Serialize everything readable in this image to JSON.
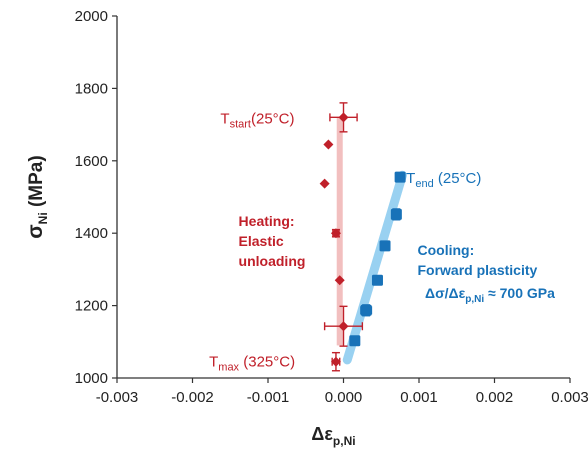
{
  "chart_data": {
    "type": "scatter",
    "xlabel": "Δε_p,Ni",
    "ylabel": "σ_Ni (MPa)",
    "xlim": [
      -0.003,
      0.003
    ],
    "ylim": [
      1000,
      2000
    ],
    "x_ticks": [
      "-0.003",
      "-0.002",
      "-0.001",
      "0.000",
      "0.001",
      "0.002",
      "0.003"
    ],
    "y_ticks": [
      "1000",
      "1200",
      "1400",
      "1600",
      "1800",
      "2000"
    ],
    "grid": false,
    "colors": {
      "heating": "#c0202a",
      "cooling": "#1872b8",
      "fit": "#8ecdf0",
      "band": "#f0b4b4"
    },
    "series": [
      {
        "marker": "diamond",
        "points": [
          {
            "x": 0.0,
            "y": 1720,
            "xerr": 0.00018,
            "yerr": 40
          },
          {
            "x": -0.0002,
            "y": 1645
          },
          {
            "x": -0.00025,
            "y": 1537
          },
          {
            "x": -0.0001,
            "y": 1400,
            "xerr": 4e-05,
            "yerr": 10
          },
          {
            "x": -5e-05,
            "y": 1270
          },
          {
            "x": 0.0,
            "y": 1143,
            "xerr": 0.00025,
            "yerr": 55
          },
          {
            "x": -0.0001,
            "y": 1045,
            "xerr": 5e-05,
            "yerr": 25
          }
        ]
      },
      {
        "marker": "square",
        "points": [
          {
            "x": 0.00015,
            "y": 1103
          },
          {
            "x": 0.0003,
            "y": 1187,
            "xerr": 7e-05,
            "yerr": 15
          },
          {
            "x": 0.00045,
            "y": 1270
          },
          {
            "x": 0.00055,
            "y": 1365
          },
          {
            "x": 0.0007,
            "y": 1452,
            "xerr": 5e-05,
            "yerr": 15
          },
          {
            "x": 0.00075,
            "y": 1555
          }
        ]
      }
    ],
    "fit_line": {
      "x": [
        5e-05,
        0.00078
      ],
      "y": [
        1050,
        1560
      ]
    },
    "band": {
      "x": -5e-05,
      "y": [
        1090,
        1720
      ]
    },
    "annotations": {
      "t_start": {
        "t": "T",
        "sub": "start",
        "rest": "(25°C)"
      },
      "t_end": {
        "t": "T",
        "sub": "end",
        "rest": " (25°C)"
      },
      "t_max": {
        "t": "T",
        "sub": "max",
        "rest": " (325°C)"
      },
      "heating_1": "Heating:",
      "heating_2": "Elastic",
      "heating_3": "unloading",
      "cooling_1": "Cooling:",
      "cooling_2": "Forward plasticity",
      "cooling_3": "Δσ/Δε",
      "cooling_3_sub": "p,Ni",
      "cooling_3_rest": " ≈ 700 GPa"
    },
    "xlabel_parts": {
      "main": "Δε",
      "sub": "p,Ni"
    },
    "ylabel_parts": {
      "main": "σ",
      "sub": "Ni",
      "rest": " (MPa)"
    }
  }
}
